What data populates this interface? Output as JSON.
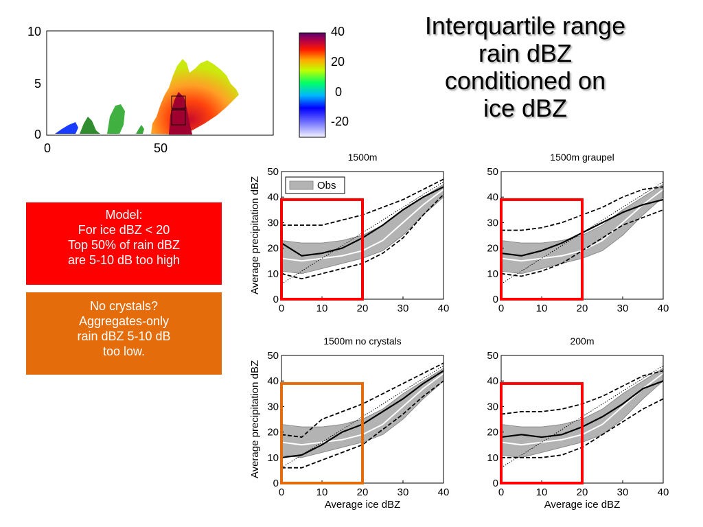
{
  "slide": {
    "title_lines": [
      "Interquartile range",
      "rain dBZ",
      "conditioned on",
      "ice dBZ"
    ],
    "model_box": {
      "lines": [
        "Model:",
        "For ice dBZ < 20",
        "Top 50% of rain dBZ",
        "are 5-10 dB too high"
      ],
      "color": "#ff0000"
    },
    "crystals_box": {
      "lines": [
        "No crystals?",
        "Aggregates-only",
        "rain dBZ 5-10 dB",
        "too low."
      ],
      "color": "#e46c0a"
    }
  },
  "radar": {
    "x_ticks": [
      "0",
      "50"
    ],
    "y_ticks": [
      "0",
      "5",
      "10"
    ],
    "colorbar_ticks": [
      "40",
      "20",
      "0",
      "-20"
    ],
    "colorbar_range": [
      -30,
      40
    ]
  },
  "chart_data": [
    {
      "type": "line",
      "title": "1500m",
      "xlabel": "",
      "ylabel": "Average precipitation dBZ",
      "xlim": [
        0,
        40
      ],
      "ylim": [
        0,
        50
      ],
      "x_ticks": [
        0,
        10,
        20,
        30,
        40
      ],
      "y_ticks": [
        0,
        10,
        20,
        30,
        40,
        50
      ],
      "legend": {
        "label": "Obs",
        "position": "top-left"
      },
      "highlight": {
        "x": [
          0,
          20
        ],
        "y": [
          0,
          39
        ],
        "color": "#ff0000"
      },
      "x": [
        0,
        5,
        10,
        15,
        20,
        25,
        30,
        35,
        40
      ],
      "obs_band_low": [
        11,
        10,
        12,
        14,
        16,
        19,
        25,
        33,
        40
      ],
      "obs_band_high": [
        23,
        22,
        22,
        23,
        25,
        29,
        35,
        40,
        45
      ],
      "obs_median": [
        16,
        15,
        16,
        17,
        19,
        23,
        30,
        37,
        43
      ],
      "series": [
        {
          "values": [
            22,
            17,
            18,
            20,
            24,
            29,
            35,
            40,
            44
          ],
          "style": "solid"
        },
        {
          "values": [
            29,
            29,
            29,
            31,
            33,
            36,
            39,
            43,
            47
          ],
          "style": "dashed"
        },
        {
          "values": [
            10,
            8,
            10,
            12,
            14,
            18,
            24,
            33,
            41
          ],
          "style": "dashed"
        }
      ]
    },
    {
      "type": "line",
      "title": "1500m graupel",
      "xlabel": "",
      "ylabel": "",
      "xlim": [
        0,
        40
      ],
      "ylim": [
        0,
        50
      ],
      "x_ticks": [
        0,
        10,
        20,
        30,
        40
      ],
      "y_ticks": [
        0,
        10,
        20,
        30,
        40,
        50
      ],
      "highlight": {
        "x": [
          0,
          20
        ],
        "y": [
          0,
          39
        ],
        "color": "#ff0000"
      },
      "x": [
        0,
        5,
        10,
        15,
        20,
        25,
        30,
        35,
        40
      ],
      "obs_band_low": [
        11,
        10,
        12,
        14,
        16,
        19,
        25,
        33,
        40
      ],
      "obs_band_high": [
        23,
        22,
        22,
        23,
        25,
        29,
        35,
        40,
        45
      ],
      "obs_median": [
        16,
        15,
        16,
        17,
        19,
        23,
        30,
        37,
        43
      ],
      "series": [
        {
          "values": [
            18,
            17,
            19,
            22,
            26,
            30,
            34,
            37,
            39
          ],
          "style": "solid"
        },
        {
          "values": [
            27,
            27,
            28,
            30,
            33,
            36,
            40,
            43,
            44
          ],
          "style": "dashed"
        },
        {
          "values": [
            10,
            9,
            11,
            14,
            19,
            24,
            29,
            32,
            35
          ],
          "style": "dashed"
        }
      ]
    },
    {
      "type": "line",
      "title": "1500m no crystals",
      "xlabel": "Average ice dBZ",
      "ylabel": "Average precipitation dBZ",
      "xlim": [
        0,
        40
      ],
      "ylim": [
        0,
        50
      ],
      "x_ticks": [
        0,
        10,
        20,
        30,
        40
      ],
      "y_ticks": [
        0,
        10,
        20,
        30,
        40,
        50
      ],
      "highlight": {
        "x": [
          0,
          20
        ],
        "y": [
          0,
          39
        ],
        "color": "#e46c0a"
      },
      "x": [
        0,
        5,
        10,
        15,
        20,
        25,
        30,
        35,
        40
      ],
      "obs_band_low": [
        11,
        10,
        12,
        14,
        16,
        19,
        25,
        33,
        40
      ],
      "obs_band_high": [
        23,
        22,
        22,
        23,
        25,
        29,
        35,
        40,
        45
      ],
      "obs_median": [
        16,
        15,
        16,
        17,
        19,
        23,
        30,
        37,
        43
      ],
      "series": [
        {
          "values": [
            10,
            11,
            15,
            20,
            23,
            28,
            33,
            39,
            44
          ],
          "style": "solid"
        },
        {
          "values": [
            19,
            18,
            25,
            28,
            31,
            35,
            39,
            43,
            47
          ],
          "style": "dashed"
        },
        {
          "values": [
            6,
            6,
            9,
            12,
            15,
            21,
            27,
            34,
            40
          ],
          "style": "dashed"
        }
      ]
    },
    {
      "type": "line",
      "title": "200m",
      "xlabel": "Average ice dBZ",
      "ylabel": "",
      "xlim": [
        0,
        40
      ],
      "ylim": [
        0,
        50
      ],
      "x_ticks": [
        0,
        10,
        20,
        30,
        40
      ],
      "y_ticks": [
        0,
        10,
        20,
        30,
        40,
        50
      ],
      "highlight": {
        "x": [
          0,
          20
        ],
        "y": [
          0,
          39
        ],
        "color": "#ff0000"
      },
      "x": [
        0,
        5,
        10,
        15,
        20,
        25,
        30,
        35,
        40
      ],
      "obs_band_low": [
        11,
        10,
        12,
        14,
        16,
        19,
        25,
        33,
        40
      ],
      "obs_band_high": [
        23,
        22,
        22,
        23,
        25,
        29,
        35,
        40,
        45
      ],
      "obs_median": [
        16,
        15,
        16,
        17,
        19,
        23,
        30,
        37,
        43
      ],
      "series": [
        {
          "values": [
            18,
            19,
            18,
            19,
            22,
            26,
            31,
            37,
            40
          ],
          "style": "solid"
        },
        {
          "values": [
            27,
            28,
            28,
            29,
            31,
            34,
            38,
            42,
            44
          ],
          "style": "dashed"
        },
        {
          "values": [
            10,
            10,
            10,
            11,
            14,
            19,
            24,
            29,
            33
          ],
          "style": "dashed"
        }
      ]
    }
  ]
}
